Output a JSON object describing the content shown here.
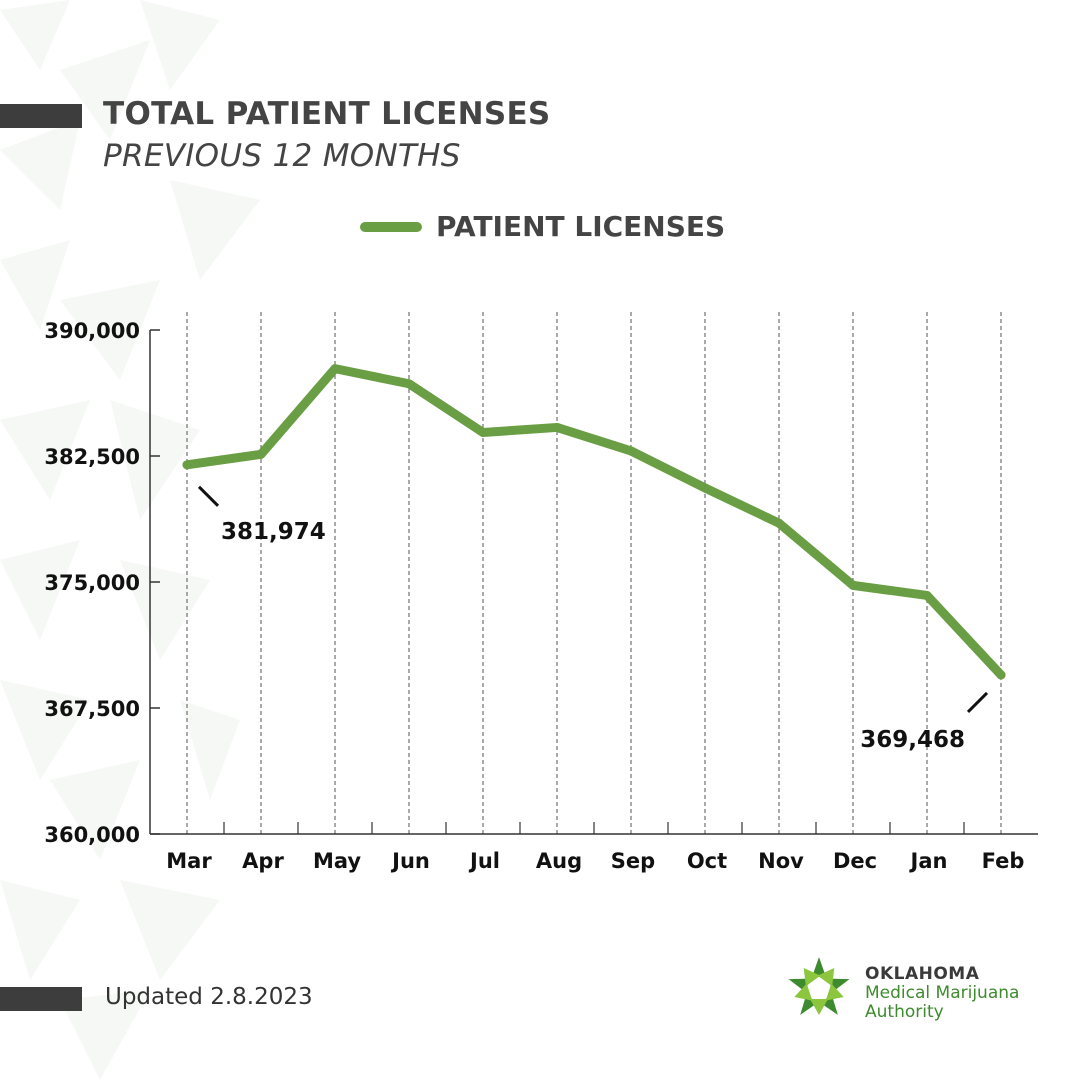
{
  "header": {
    "title": "TOTAL PATIENT LICENSES",
    "subtitle": "PREVIOUS 12 MONTHS"
  },
  "legend": {
    "label": "PATIENT LICENSES"
  },
  "footer": {
    "updated": "Updated 2.8.2023"
  },
  "logo": {
    "line1": "OKLAHOMA",
    "line2": "Medical Marijuana",
    "line3": "Authority"
  },
  "colors": {
    "line": "#6a9e44",
    "accent_bar": "#3d3d3d",
    "logo_green": "#3e8a2e"
  },
  "chart_data": {
    "type": "line",
    "title": "TOTAL PATIENT LICENSES",
    "subtitle": "PREVIOUS 12 MONTHS",
    "xlabel": "",
    "ylabel": "",
    "categories": [
      "Mar",
      "Apr",
      "May",
      "Jun",
      "Jul",
      "Aug",
      "Sep",
      "Oct",
      "Nov",
      "Dec",
      "Jan",
      "Feb"
    ],
    "series": [
      {
        "name": "PATIENT LICENSES",
        "values": [
          381974,
          382600,
          387700,
          386800,
          383900,
          384200,
          382800,
          380600,
          378500,
          374800,
          374200,
          369468
        ]
      }
    ],
    "ylim": [
      360000,
      390000
    ],
    "yticks": [
      360000,
      367500,
      375000,
      382500,
      390000
    ],
    "ytick_labels": [
      "360,000",
      "367,500",
      "375,000",
      "382,500",
      "390,000"
    ],
    "grid": "vertical dashed lines at each month",
    "legend_position": "top-center",
    "annotations": [
      {
        "label": "381,974",
        "category": "Mar",
        "value": 381974
      },
      {
        "label": "369,468",
        "category": "Feb",
        "value": 369468
      }
    ]
  }
}
